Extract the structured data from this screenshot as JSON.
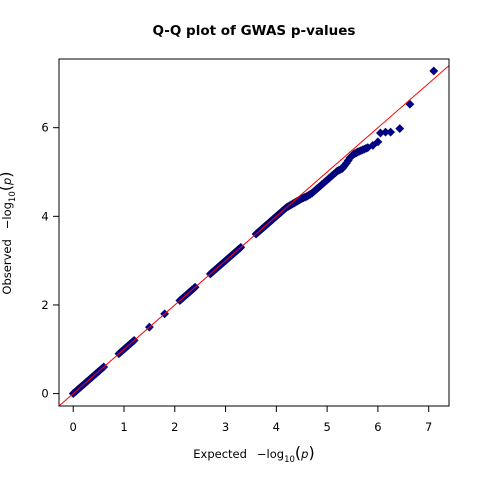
{
  "chart_data": {
    "type": "scatter",
    "title": "Q-Q plot of GWAS p-values",
    "xlabel": {
      "prefix": "Expected",
      "log": "−log",
      "sub": "10",
      "open": "(",
      "var": "p",
      "close": ")"
    },
    "ylabel": {
      "prefix": "Observed",
      "log": "−log",
      "sub": "10",
      "open": "(",
      "var": "p",
      "close": ")"
    },
    "xlim": [
      -0.28,
      7.4
    ],
    "ylim": [
      -0.28,
      7.55
    ],
    "xticks": [
      0,
      1,
      2,
      3,
      4,
      5,
      6,
      7
    ],
    "yticks": [
      0,
      2,
      4,
      6
    ],
    "reference_line": {
      "slope": 1,
      "intercept": 0,
      "color": "#ff0000"
    },
    "point_color": "#00008b",
    "grid": false,
    "series": [
      {
        "marker": "diamond",
        "x": [
          0.0,
          0.3,
          0.6,
          0.9,
          1.2,
          1.5,
          1.8,
          2.1,
          2.4,
          2.7,
          3.0,
          3.3,
          3.6,
          3.9,
          4.05,
          4.2,
          4.35,
          4.5,
          4.6,
          4.7,
          4.8,
          4.9,
          5.0,
          5.1,
          5.2,
          5.3,
          5.38,
          5.45,
          5.52,
          5.6,
          5.7,
          5.8,
          5.9,
          6.0,
          6.05,
          6.15,
          6.25,
          6.43,
          6.63,
          7.1
        ],
        "y": [
          0.0,
          0.3,
          0.6,
          0.9,
          1.2,
          1.5,
          1.8,
          2.1,
          2.4,
          2.7,
          3.0,
          3.3,
          3.6,
          3.9,
          4.05,
          4.2,
          4.3,
          4.4,
          4.45,
          4.52,
          4.62,
          4.72,
          4.82,
          4.92,
          5.02,
          5.08,
          5.2,
          5.32,
          5.4,
          5.45,
          5.5,
          5.55,
          5.6,
          5.68,
          5.88,
          5.9,
          5.9,
          5.98,
          6.53,
          7.28
        ]
      }
    ]
  }
}
